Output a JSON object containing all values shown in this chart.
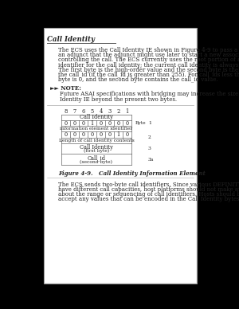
{
  "bg_color_top": "#111111",
  "bg_color_page": "#cccccc",
  "content_bg": "#ffffff",
  "title": "Call Identity",
  "body_text_lines": [
    "The ECS uses the Call Identity IE shown in Figure 4-9 to pass a call identifier to",
    "an adjunct that the adjunct might use later to start a new association for",
    "controlling the call. The ECS currently uses the root portion of an internal call",
    "identifier for the call identity; the current call identity is always 16 bits in length.",
    "The first byte is the high-order value and the second byte is the low-order value for",
    "the call_id (if the call_id is greater than 255). For call_ids less than 255, the first",
    "byte is 0, and the second byte contains the call_id value."
  ],
  "note_label": "►► NOTE:",
  "note_text_lines": [
    "Future ASAI specifications with bridging may increase the size of the Call",
    "Identity IE beyond the present two bytes."
  ],
  "bit_labels": [
    "8",
    "7",
    "6",
    "5",
    "4",
    "3",
    "2",
    "1"
  ],
  "row1_bits": [
    "0",
    "0",
    "0",
    "1",
    "0",
    "0",
    "0",
    "0"
  ],
  "row1_header": "Call Identity",
  "row1_sublabel": "information element identifier",
  "row1_byte_label": "Byte",
  "row1_byte_num": "1",
  "row2_bits": [
    "0",
    "0",
    "0",
    "0",
    "0",
    "0",
    "1",
    "0"
  ],
  "row2_label": "Length of call identity contents",
  "row2_byte_num": "2",
  "row3_label": "Call Identity",
  "row3_sublabel": "(first byte)",
  "row3_byte_num": "3",
  "row4_label": "Call_id",
  "row4_sublabel": "(second byte)",
  "row4_byte_num": "3a",
  "fig_caption": "Figure 4-9.   Call Identity Information Element",
  "footer_lines": [
    "The ECS sends two-byte call identifiers. Since various DEFINITY ECS switches",
    "have different call capacities, host platforms should not make any assumptions",
    "about the range or sequencing of call identifiers. Hosts should be prepared to",
    "accept any values that can be encoded in the Call Identity bytes in any order."
  ],
  "text_color": "#222222",
  "line_color": "#777777",
  "fs_body": 5.0,
  "fs_bit": 4.8,
  "fs_title": 6.2
}
